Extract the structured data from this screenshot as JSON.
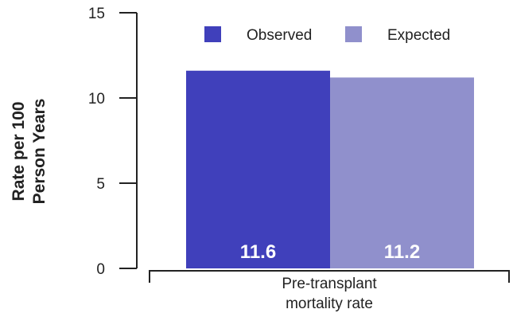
{
  "chart_data": {
    "type": "bar",
    "categories": [
      "Pre-transplant mortality rate"
    ],
    "category_label_lines": [
      "Pre-transplant",
      "mortality rate"
    ],
    "series": [
      {
        "name": "Observed",
        "values": [
          11.6
        ],
        "color": "#4040BB",
        "label": "11.6"
      },
      {
        "name": "Expected",
        "values": [
          11.2
        ],
        "color": "#9090CC",
        "label": "11.2"
      }
    ],
    "title": "",
    "xlabel": "",
    "ylabel_lines": [
      "Rate per 100",
      "Person Years"
    ],
    "ylim": [
      0,
      15
    ],
    "yticks": [
      0,
      5,
      10,
      15
    ],
    "ytick_labels": [
      "0",
      "5",
      "10",
      "15"
    ],
    "grid": false,
    "legend_position": "top-right"
  }
}
